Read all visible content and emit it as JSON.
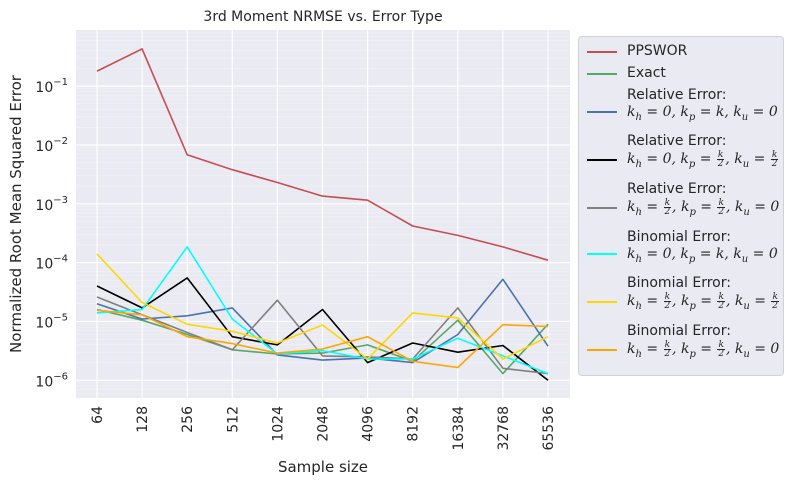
{
  "chart_data": {
    "type": "line",
    "title": "3rd Moment NRMSE vs. Error Type",
    "xlabel": "Sample size",
    "ylabel": "Normalized Root Mean Squared Error",
    "yscale": "log",
    "ylim": [
      5e-07,
      0.9
    ],
    "grid": true,
    "legend_placement": "outside-right",
    "categories": [
      "64",
      "128",
      "256",
      "512",
      "1024",
      "2048",
      "4096",
      "8192",
      "16384",
      "32768",
      "65536"
    ],
    "yticks": [
      "10^-6",
      "10^-5",
      "10^-4",
      "10^-3",
      "10^-2",
      "10^-1"
    ],
    "series": [
      {
        "name": "PPSWOR",
        "color": "#c44e52",
        "values": [
          0.18,
          0.43,
          0.0068,
          0.0038,
          0.0023,
          0.00135,
          0.00115,
          0.00042,
          0.00029,
          0.000185,
          0.00011
        ]
      },
      {
        "name": "Exact",
        "color": "#55a868",
        "values": [
          1.6e-05,
          1.05e-05,
          6e-06,
          3.3e-06,
          2.8e-06,
          2.9e-06,
          4e-06,
          2.1e-06,
          1.05e-05,
          1.3e-06,
          9e-06
        ]
      },
      {
        "name": "Relative Error: kh=0, kp=k, ku=0",
        "color": "#4c72b0",
        "values": [
          2e-05,
          1.1e-05,
          1.25e-05,
          1.7e-05,
          2.7e-06,
          2.2e-06,
          2.4e-06,
          2e-06,
          6e-06,
          5.2e-05,
          3.8e-06
        ]
      },
      {
        "name": "Relative Error: kh=0, kp=k/2, ku=k/2",
        "color": "#000000",
        "values": [
          4e-05,
          1.7e-05,
          5.5e-05,
          5.5e-06,
          4e-06,
          1.6e-05,
          2e-06,
          4.3e-06,
          3e-06,
          3.9e-06,
          1e-06
        ]
      },
      {
        "name": "Relative Error: kh=k/2, kp=k/2, ku=0",
        "color": "#808080",
        "values": [
          2.6e-05,
          1.3e-05,
          6.5e-06,
          3.3e-06,
          2.3e-05,
          2.6e-06,
          2.5e-06,
          2.3e-06,
          1.7e-05,
          1.6e-06,
          1.3e-06
        ]
      },
      {
        "name": "Binomial Error: kh=0, kp=k, ku=0",
        "color": "#00ffff",
        "values": [
          1.4e-05,
          1.6e-05,
          0.000185,
          1.1e-05,
          2.8e-06,
          3.2e-06,
          2.3e-06,
          2.3e-06,
          5.2e-06,
          2.6e-06,
          1.3e-06
        ]
      },
      {
        "name": "Binomial Error: kh=k/2, kp=k/2, ku=k/2",
        "color": "#ffd700",
        "values": [
          0.00014,
          2.1e-05,
          9e-06,
          6.8e-06,
          4.3e-06,
          8.7e-06,
          2.3e-06,
          1.4e-05,
          1.15e-05,
          2.3e-06,
          5.5e-06
        ]
      },
      {
        "name": "Binomial Error: kh=k/2, kp=k/2, ku=0",
        "color": "#ffa500",
        "values": [
          1.55e-05,
          1.3e-05,
          5.5e-06,
          4.2e-06,
          2.9e-06,
          3.4e-06,
          5.5e-06,
          2.1e-06,
          1.65e-06,
          8.8e-06,
          8.2e-06
        ]
      }
    ]
  },
  "legend": {
    "ppswor": "PPSWOR",
    "exact": "Exact",
    "relative": "Relative Error:",
    "binomial": "Binomial Error:"
  }
}
